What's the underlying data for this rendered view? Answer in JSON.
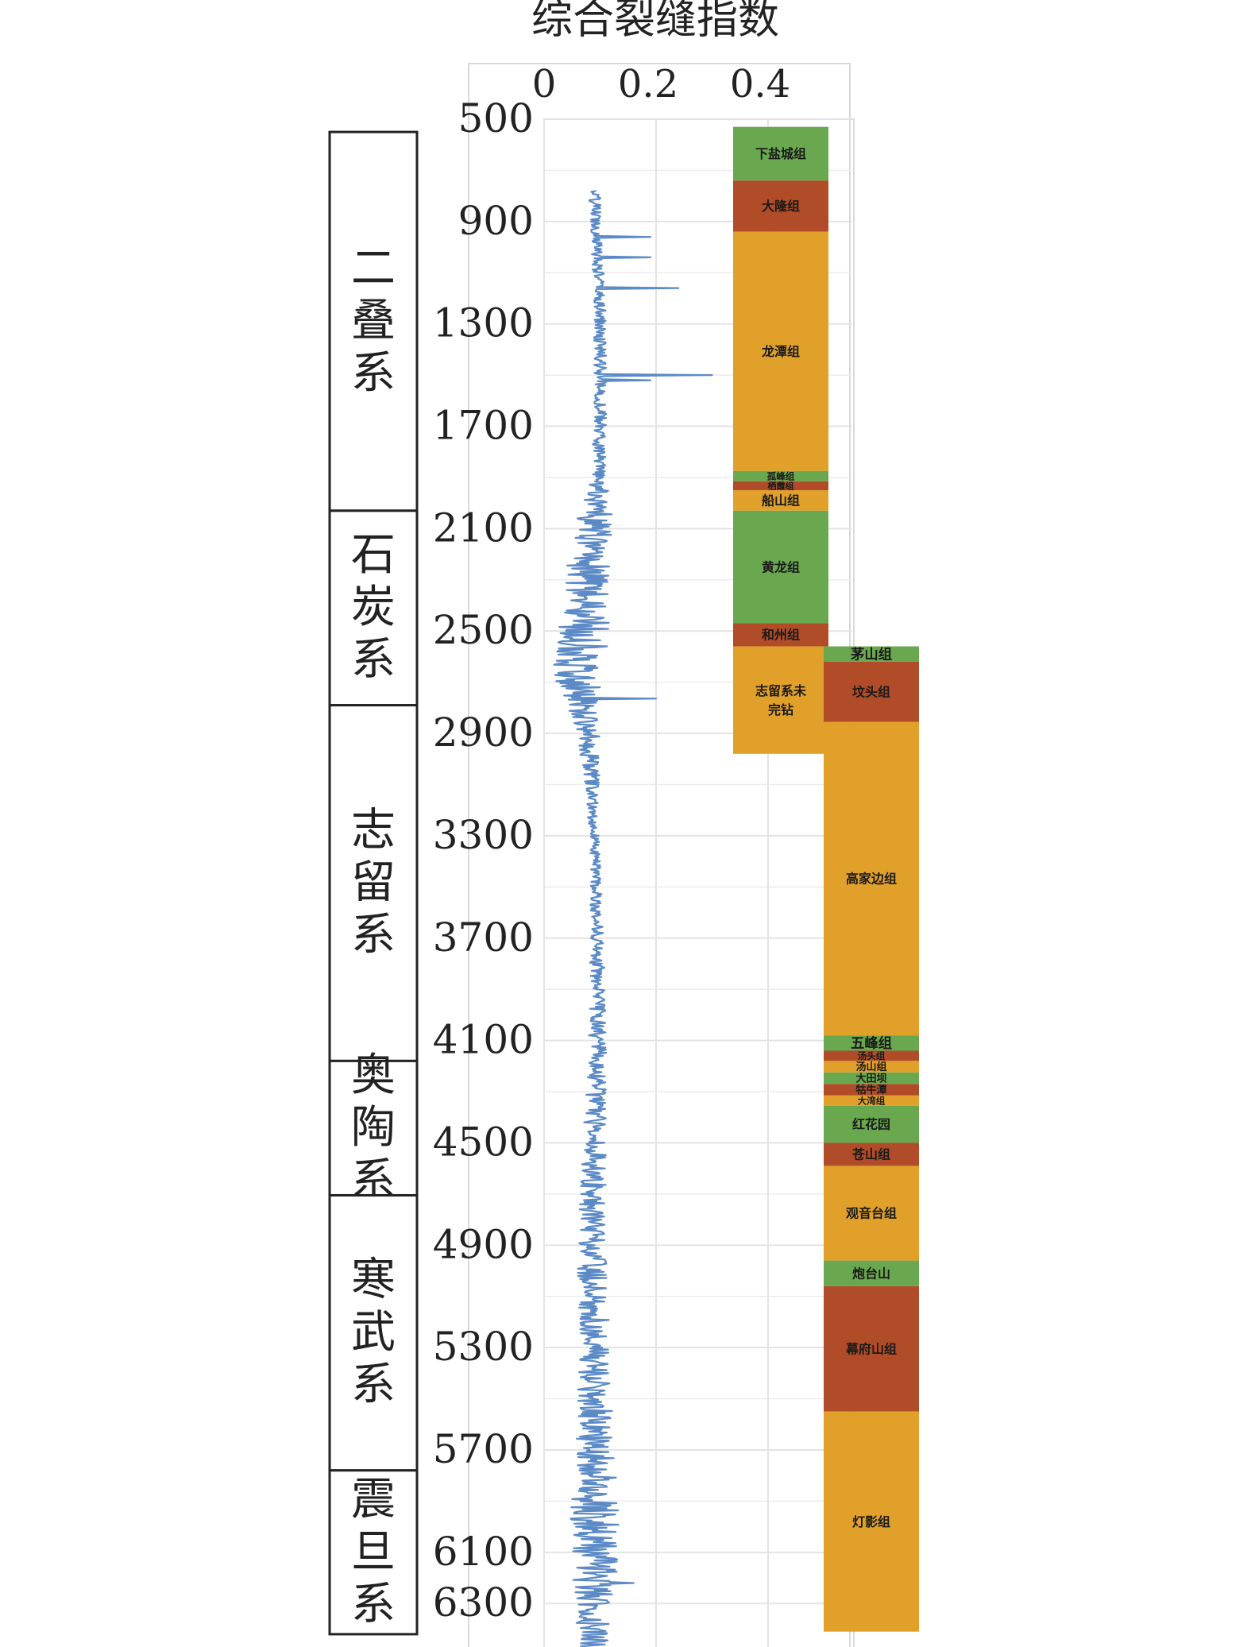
{
  "chart_data": {
    "type": "line",
    "title": "综合裂缝指数",
    "x_ticks": [
      "0",
      "0.2",
      "0.4"
    ],
    "x_tick_values": [
      0,
      0.2,
      0.4
    ],
    "y_ticks": [
      "500",
      "900",
      "1300",
      "1700",
      "2100",
      "2500",
      "2900",
      "3300",
      "3700",
      "4100",
      "4500",
      "4900",
      "5300",
      "5700",
      "6100",
      "6300"
    ],
    "y_tick_values": [
      500,
      900,
      1300,
      1700,
      2100,
      2500,
      2900,
      3300,
      3700,
      4100,
      4500,
      4900,
      5300,
      5700,
      6100,
      6300
    ],
    "x_range": [
      0,
      0.55
    ],
    "y_range": [
      500,
      6470
    ],
    "y_inverted": true,
    "grid": true,
    "series": [
      {
        "color": "#5b8ac6",
        "depth_start": 780,
        "depth_end": 6470,
        "baseline": [
          [
            780,
            0.09
          ],
          [
            1000,
            0.095
          ],
          [
            1300,
            0.1
          ],
          [
            1700,
            0.1
          ],
          [
            2000,
            0.095
          ],
          [
            2300,
            0.075
          ],
          [
            2500,
            0.07
          ],
          [
            2700,
            0.06
          ],
          [
            2900,
            0.08
          ],
          [
            3300,
            0.09
          ],
          [
            3700,
            0.095
          ],
          [
            4100,
            0.095
          ],
          [
            4500,
            0.09
          ],
          [
            4900,
            0.085
          ],
          [
            5300,
            0.09
          ],
          [
            5700,
            0.09
          ],
          [
            6100,
            0.09
          ],
          [
            6470,
            0.09
          ]
        ],
        "noise": [
          [
            780,
            0.01
          ],
          [
            1900,
            0.012
          ],
          [
            2000,
            0.03
          ],
          [
            2300,
            0.04
          ],
          [
            2600,
            0.05
          ],
          [
            2900,
            0.02
          ],
          [
            3300,
            0.008
          ],
          [
            4000,
            0.015
          ],
          [
            4900,
            0.025
          ],
          [
            5500,
            0.03
          ],
          [
            5800,
            0.04
          ],
          [
            6100,
            0.045
          ],
          [
            6470,
            0.03
          ]
        ],
        "spikes": [
          [
            790,
            0.22
          ],
          [
            870,
            0.28
          ],
          [
            960,
            0.19
          ],
          [
            1040,
            0.19
          ],
          [
            1160,
            0.24
          ],
          [
            1500,
            0.3
          ],
          [
            1520,
            0.19
          ],
          [
            2230,
            0.17
          ],
          [
            2310,
            0.16
          ],
          [
            2470,
            0.27
          ],
          [
            2750,
            0.21
          ],
          [
            2765,
            0.2
          ],
          [
            4630,
            0.05
          ],
          [
            4850,
            0.18
          ],
          [
            6050,
            0.2
          ],
          [
            6220,
            0.16
          ]
        ]
      }
    ],
    "formations_left": [
      {
        "name": "下盐城组",
        "top": 530,
        "bottom": 740,
        "color": "#6aa84f"
      },
      {
        "name": "大隆组",
        "top": 740,
        "bottom": 940,
        "color": "#b04c28"
      },
      {
        "name": "龙潭组",
        "top": 940,
        "bottom": 1875,
        "color": "#e0a02a"
      },
      {
        "name": "孤峰组",
        "top": 1875,
        "bottom": 1915,
        "color": "#6aa84f"
      },
      {
        "name": "栖霞组",
        "top": 1915,
        "bottom": 1950,
        "color": "#b04c28"
      },
      {
        "name": "船山组",
        "top": 1950,
        "bottom": 2030,
        "color": "#e0a02a"
      },
      {
        "name": "黄龙组",
        "top": 2030,
        "bottom": 2470,
        "color": "#6aa84f"
      },
      {
        "name": "和州组",
        "top": 2470,
        "bottom": 2560,
        "color": "#b04c28"
      },
      {
        "name": "志留系未完钻",
        "top": 2560,
        "bottom": 2980,
        "color": "#e0a02a"
      }
    ],
    "formations_right": [
      {
        "name": "茅山组",
        "top": 2560,
        "bottom": 2620,
        "color": "#6aa84f"
      },
      {
        "name": "坟头组",
        "top": 2620,
        "bottom": 2855,
        "color": "#b04c28"
      },
      {
        "name": "高家边组",
        "top": 2855,
        "bottom": 4080,
        "color": "#e0a02a"
      },
      {
        "name": "五峰组",
        "top": 4080,
        "bottom": 4140,
        "color": "#6aa84f"
      },
      {
        "name": "汤头组",
        "top": 4140,
        "bottom": 4180,
        "color": "#b04c28"
      },
      {
        "name": "汤山组",
        "top": 4180,
        "bottom": 4225,
        "color": "#e0a02a"
      },
      {
        "name": "大田坝",
        "top": 4225,
        "bottom": 4270,
        "color": "#6aa84f"
      },
      {
        "name": "牯牛潭",
        "top": 4270,
        "bottom": 4315,
        "color": "#b04c28"
      },
      {
        "name": "大湾组",
        "top": 4315,
        "bottom": 4355,
        "color": "#e0a02a"
      },
      {
        "name": "红花园",
        "top": 4355,
        "bottom": 4500,
        "color": "#6aa84f"
      },
      {
        "name": "苍山组",
        "top": 4500,
        "bottom": 4590,
        "color": "#b04c28"
      },
      {
        "name": "观音台组",
        "top": 4590,
        "bottom": 4960,
        "color": "#e0a02a"
      },
      {
        "name": "炮台山",
        "top": 4960,
        "bottom": 5060,
        "color": "#6aa84f"
      },
      {
        "name": "幕府山组",
        "top": 5060,
        "bottom": 5550,
        "color": "#b04c28"
      },
      {
        "name": "灯影组",
        "top": 5550,
        "bottom": 6410,
        "color": "#e0a02a"
      }
    ],
    "systems": [
      {
        "name": "二叠系",
        "top": 550,
        "bottom": 2030
      },
      {
        "name": "石炭系",
        "top": 2030,
        "bottom": 2790
      },
      {
        "name": "志留系",
        "top": 2790,
        "bottom": 4180
      },
      {
        "name": "奥陶系",
        "top": 4180,
        "bottom": 4705
      },
      {
        "name": "寒武系",
        "top": 4705,
        "bottom": 5780
      },
      {
        "name": "震旦系",
        "top": 5780,
        "bottom": 6420
      }
    ]
  }
}
